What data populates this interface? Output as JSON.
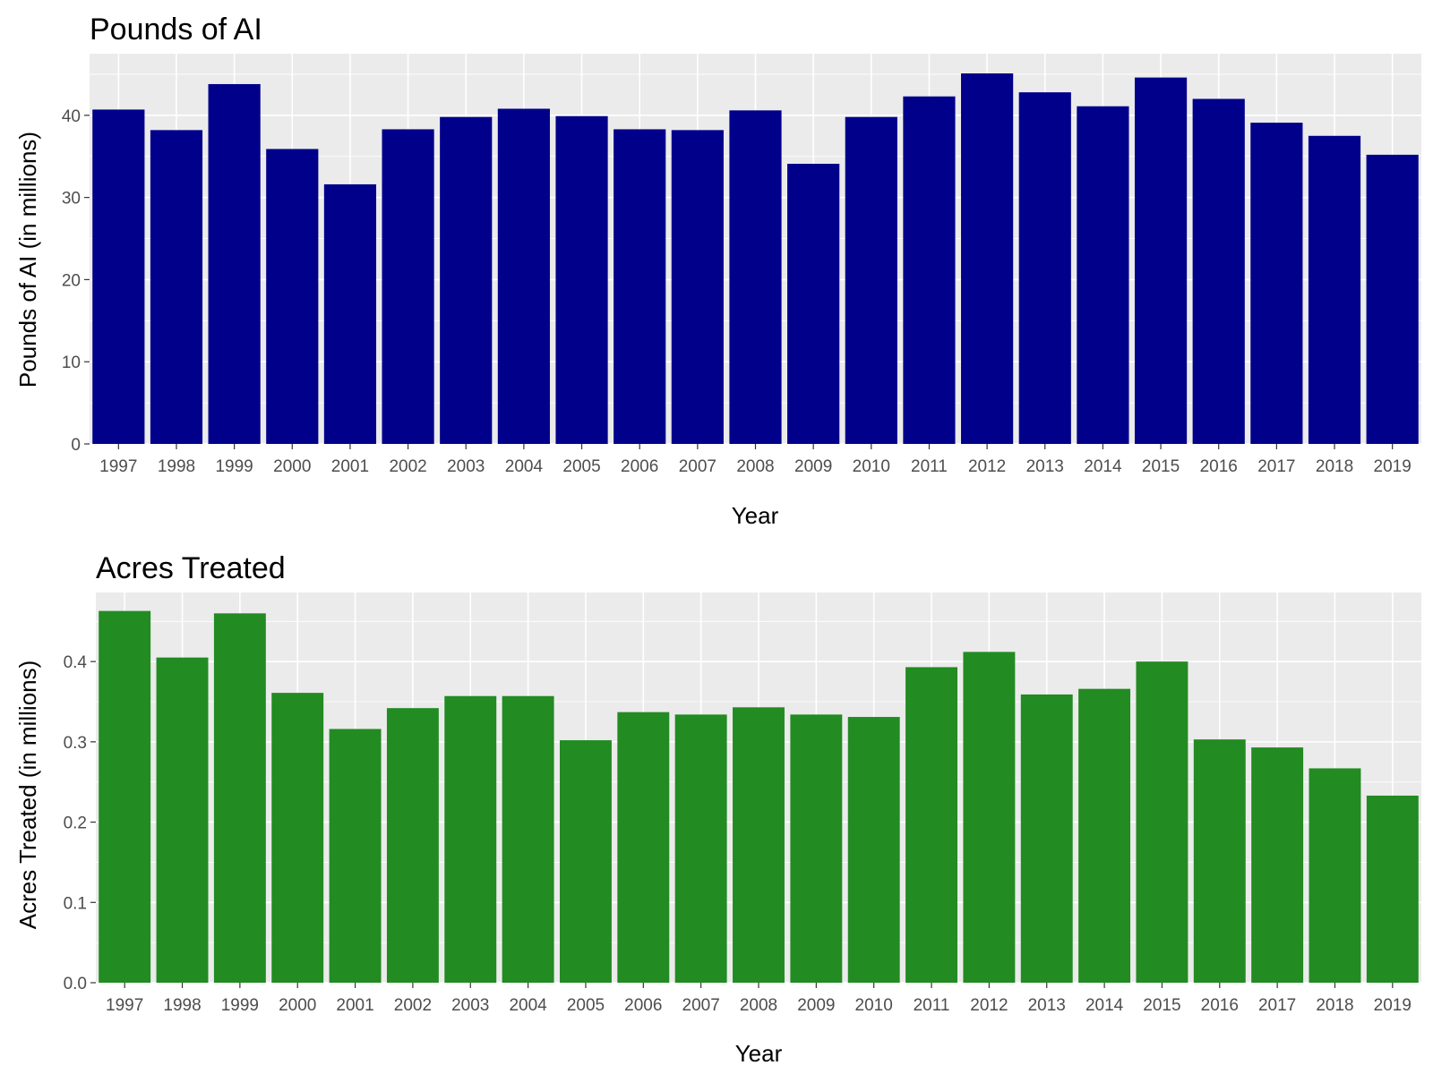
{
  "chart_data": [
    {
      "type": "bar",
      "title": "Pounds of AI",
      "xlabel": "Year",
      "ylabel": "Pounds of AI (in millions)",
      "color": "#00008b",
      "ylim": [
        0,
        47.5
      ],
      "yticks": [
        0,
        10,
        20,
        30,
        40
      ],
      "ytick_labels": [
        "0",
        "10",
        "20",
        "30",
        "40"
      ],
      "categories": [
        "1997",
        "1998",
        "1999",
        "2000",
        "2001",
        "2002",
        "2003",
        "2004",
        "2005",
        "2006",
        "2007",
        "2008",
        "2009",
        "2010",
        "2011",
        "2012",
        "2013",
        "2014",
        "2015",
        "2016",
        "2017",
        "2018",
        "2019"
      ],
      "values": [
        40.7,
        38.2,
        43.8,
        35.9,
        31.6,
        38.3,
        39.8,
        40.8,
        39.9,
        38.3,
        38.2,
        40.6,
        34.1,
        39.8,
        42.3,
        45.1,
        42.8,
        41.1,
        44.6,
        42.0,
        39.1,
        37.5,
        35.2
      ],
      "grid": true
    },
    {
      "type": "bar",
      "title": "Acres Treated",
      "xlabel": "Year",
      "ylabel": "Acres Treated (in millions)",
      "color": "#228b22",
      "ylim": [
        0,
        0.486
      ],
      "yticks": [
        0,
        0.1,
        0.2,
        0.3,
        0.4
      ],
      "ytick_labels": [
        "0.0",
        "0.1",
        "0.2",
        "0.3",
        "0.4"
      ],
      "categories": [
        "1997",
        "1998",
        "1999",
        "2000",
        "2001",
        "2002",
        "2003",
        "2004",
        "2005",
        "2006",
        "2007",
        "2008",
        "2009",
        "2010",
        "2011",
        "2012",
        "2013",
        "2014",
        "2015",
        "2016",
        "2017",
        "2018",
        "2019"
      ],
      "values": [
        0.463,
        0.405,
        0.46,
        0.361,
        0.316,
        0.342,
        0.357,
        0.357,
        0.302,
        0.337,
        0.334,
        0.343,
        0.334,
        0.331,
        0.393,
        0.412,
        0.359,
        0.366,
        0.4,
        0.303,
        0.293,
        0.267,
        0.233
      ],
      "grid": true
    }
  ]
}
